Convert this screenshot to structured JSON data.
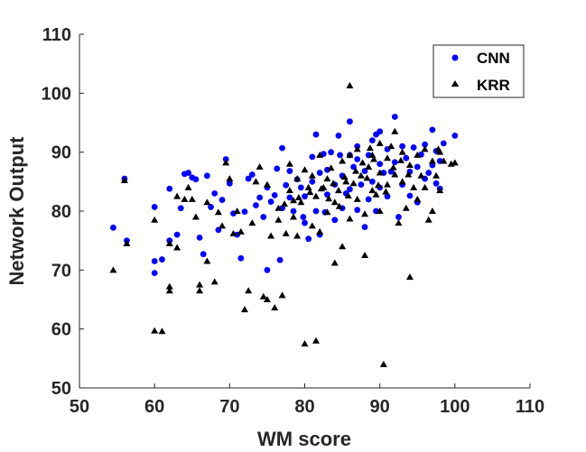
{
  "chart_data": {
    "type": "scatter",
    "title": "",
    "xlabel": "WM score",
    "ylabel": "Network Output",
    "xlim": [
      50,
      110
    ],
    "ylim": [
      50,
      110
    ],
    "xticks": [
      "50",
      "60",
      "70",
      "80",
      "90",
      "100",
      "110"
    ],
    "yticks": [
      "50",
      "60",
      "70",
      "80",
      "90",
      "100",
      "110"
    ],
    "grid": false,
    "legend_position": "top-right",
    "series": [
      {
        "name": "CNN",
        "marker": "circle",
        "color": "#0000ff",
        "points": [
          [
            54.5,
            77.2
          ],
          [
            56,
            85.5
          ],
          [
            56.3,
            75
          ],
          [
            60,
            80.7
          ],
          [
            60,
            71.5
          ],
          [
            60,
            69.5
          ],
          [
            61,
            71.8
          ],
          [
            62,
            75
          ],
          [
            62,
            83.8
          ],
          [
            63,
            76
          ],
          [
            63.5,
            80.5
          ],
          [
            64,
            86.3
          ],
          [
            64.5,
            86.5
          ],
          [
            65,
            85.7
          ],
          [
            65.5,
            85.4
          ],
          [
            66,
            75.5
          ],
          [
            66.5,
            72.7
          ],
          [
            67,
            86
          ],
          [
            67.5,
            80.7
          ],
          [
            68,
            83
          ],
          [
            68.5,
            76.8
          ],
          [
            69,
            81.9
          ],
          [
            69.5,
            88.8
          ],
          [
            70,
            84.7
          ],
          [
            70.5,
            79.6
          ],
          [
            71,
            76
          ],
          [
            71.5,
            72
          ],
          [
            72,
            79.9
          ],
          [
            72.5,
            85.5
          ],
          [
            73,
            86.2
          ],
          [
            73.5,
            81
          ],
          [
            74,
            82.3
          ],
          [
            74.5,
            79
          ],
          [
            75,
            70
          ],
          [
            75,
            84
          ],
          [
            75.5,
            81.6
          ],
          [
            76,
            82.7
          ],
          [
            76.3,
            87.2
          ],
          [
            76.7,
            71.7
          ],
          [
            77,
            90.7
          ],
          [
            77,
            80.5
          ],
          [
            77.5,
            84.4
          ],
          [
            78,
            82.3
          ],
          [
            78,
            86.8
          ],
          [
            78.5,
            80
          ],
          [
            79,
            85.4
          ],
          [
            79.5,
            84
          ],
          [
            80,
            82.5
          ],
          [
            80,
            78
          ],
          [
            80.5,
            75.3
          ],
          [
            81,
            89.2
          ],
          [
            81,
            85
          ],
          [
            81.5,
            93
          ],
          [
            81.5,
            80
          ],
          [
            82,
            86.5
          ],
          [
            82,
            76
          ],
          [
            82.5,
            89.7
          ],
          [
            83,
            82.8
          ],
          [
            83,
            87
          ],
          [
            83.5,
            90
          ],
          [
            84,
            84.5
          ],
          [
            84,
            78.5
          ],
          [
            84.5,
            92.8
          ],
          [
            85,
            86
          ],
          [
            85,
            80.5
          ],
          [
            85.5,
            83
          ],
          [
            86,
            95.2
          ],
          [
            86,
            89.5
          ],
          [
            86,
            83.7
          ],
          [
            86.5,
            87.5
          ],
          [
            87,
            80.2
          ],
          [
            87,
            91
          ],
          [
            87.5,
            84.5
          ],
          [
            88,
            86.8
          ],
          [
            88,
            77.3
          ],
          [
            88.5,
            89.5
          ],
          [
            88.5,
            82
          ],
          [
            89,
            92
          ],
          [
            89,
            85
          ],
          [
            89.5,
            80
          ],
          [
            90,
            93.5
          ],
          [
            90,
            88
          ],
          [
            90,
            84
          ],
          [
            90.5,
            86.5
          ],
          [
            91,
            90.5
          ],
          [
            91,
            82.5
          ],
          [
            91.5,
            86.7
          ],
          [
            92,
            96
          ],
          [
            92,
            88.3
          ],
          [
            92.5,
            79
          ],
          [
            93,
            91
          ],
          [
            93,
            84.5
          ],
          [
            93.5,
            89
          ],
          [
            94,
            86.7
          ],
          [
            94,
            82.6
          ],
          [
            94.5,
            90.8
          ],
          [
            95,
            87.5
          ],
          [
            95,
            81.5
          ],
          [
            95.5,
            89.6
          ],
          [
            96,
            91.3
          ],
          [
            96,
            85.5
          ],
          [
            96.5,
            86.5
          ],
          [
            97,
            93.8
          ],
          [
            97,
            87.8
          ],
          [
            97.5,
            90.2
          ],
          [
            97.5,
            84.7
          ],
          [
            98,
            88.5
          ],
          [
            98,
            83.8
          ],
          [
            98.5,
            91.5
          ],
          [
            100,
            92.8
          ],
          [
            89.5,
            93
          ],
          [
            87,
            88.8
          ],
          [
            84.7,
            89.5
          ],
          [
            82.7,
            79.8
          ],
          [
            79.8,
            79
          ]
        ]
      },
      {
        "name": "KRR",
        "marker": "triangle",
        "color": "#000000",
        "points": [
          [
            54.5,
            70
          ],
          [
            56,
            85.2
          ],
          [
            56.3,
            74.5
          ],
          [
            60,
            59.7
          ],
          [
            61,
            59.6
          ],
          [
            60,
            78.5
          ],
          [
            62,
            66.5
          ],
          [
            62,
            67.2
          ],
          [
            62,
            74.5
          ],
          [
            63,
            82.5
          ],
          [
            63,
            73.8
          ],
          [
            64,
            82
          ],
          [
            64.5,
            84
          ],
          [
            65,
            82
          ],
          [
            65.5,
            79
          ],
          [
            66,
            67.5
          ],
          [
            66,
            66.5
          ],
          [
            67,
            71.5
          ],
          [
            67,
            81.5
          ],
          [
            68,
            68
          ],
          [
            68.5,
            79.8
          ],
          [
            69,
            77.5
          ],
          [
            69.5,
            88.2
          ],
          [
            70,
            85.5
          ],
          [
            70.5,
            76.2
          ],
          [
            71,
            80
          ],
          [
            71.5,
            76.5
          ],
          [
            72,
            63.3
          ],
          [
            72.5,
            66.5
          ],
          [
            73,
            78
          ],
          [
            73.5,
            85
          ],
          [
            74,
            87.5
          ],
          [
            74.5,
            65.5
          ],
          [
            75,
            65
          ],
          [
            75,
            84.5
          ],
          [
            75.5,
            75.8
          ],
          [
            76,
            63.6
          ],
          [
            76.5,
            78.5
          ],
          [
            77,
            65.7
          ],
          [
            77.5,
            76.2
          ],
          [
            78,
            83.5
          ],
          [
            78,
            88
          ],
          [
            78.5,
            79
          ],
          [
            79,
            85.5
          ],
          [
            79,
            75.8
          ],
          [
            79.5,
            81.5
          ],
          [
            80,
            57.5
          ],
          [
            80,
            87
          ],
          [
            80.5,
            84
          ],
          [
            81,
            86
          ],
          [
            81,
            77.5
          ],
          [
            81.5,
            58
          ],
          [
            81.5,
            82.5
          ],
          [
            82,
            89.5
          ],
          [
            82,
            76.5
          ],
          [
            82.5,
            84
          ],
          [
            83,
            85.5
          ],
          [
            83,
            79.8
          ],
          [
            83.5,
            87.3
          ],
          [
            84,
            81.5
          ],
          [
            84,
            71.2
          ],
          [
            84.5,
            83.5
          ],
          [
            85,
            88.5
          ],
          [
            85,
            74
          ],
          [
            85.5,
            85
          ],
          [
            86,
            101.3
          ],
          [
            86,
            89.5
          ],
          [
            86,
            78.7
          ],
          [
            86.5,
            84.7
          ],
          [
            87,
            90.5
          ],
          [
            87,
            82
          ],
          [
            87.5,
            86
          ],
          [
            88,
            79.5
          ],
          [
            88,
            72.5
          ],
          [
            88.5,
            87.5
          ],
          [
            89,
            83.5
          ],
          [
            89,
            89.5
          ],
          [
            89.5,
            82.8
          ],
          [
            90,
            91.5
          ],
          [
            90,
            86.5
          ],
          [
            90,
            80
          ],
          [
            90.5,
            54
          ],
          [
            91,
            89
          ],
          [
            91,
            84.5
          ],
          [
            91.5,
            91
          ],
          [
            92,
            93.5
          ],
          [
            92,
            86.2
          ],
          [
            92.5,
            78
          ],
          [
            93,
            90
          ],
          [
            93,
            85
          ],
          [
            93.5,
            80.5
          ],
          [
            94,
            68.8
          ],
          [
            94,
            87.8
          ],
          [
            94.5,
            84
          ],
          [
            95,
            89.5
          ],
          [
            95,
            82
          ],
          [
            95.5,
            86
          ],
          [
            96,
            90.5
          ],
          [
            96,
            84
          ],
          [
            96.5,
            78.5
          ],
          [
            97,
            88.5
          ],
          [
            97,
            80
          ],
          [
            97.5,
            86
          ],
          [
            98,
            90
          ],
          [
            98,
            83.5
          ],
          [
            98.5,
            88.5
          ],
          [
            99.5,
            88
          ],
          [
            100,
            88.2
          ],
          [
            97.8,
            90.5
          ],
          [
            88.7,
            90.7
          ],
          [
            89.2,
            88.8
          ],
          [
            87.7,
            88.2
          ],
          [
            85.3,
            85.8
          ],
          [
            83.8,
            84.7
          ],
          [
            82.2,
            83.8
          ],
          [
            80.7,
            83.2
          ],
          [
            79.2,
            82.3
          ],
          [
            78.5,
            81.8
          ],
          [
            77.3,
            81.2
          ],
          [
            76.5,
            80.5
          ],
          [
            90.8,
            83.3
          ],
          [
            91.8,
            87.4
          ],
          [
            92.8,
            88.6
          ],
          [
            93.8,
            86.2
          ],
          [
            89.8,
            84.4
          ],
          [
            88.3,
            85.6
          ],
          [
            86.8,
            86.8
          ],
          [
            85.8,
            82.6
          ],
          [
            84.6,
            80.8
          ],
          [
            83.2,
            82.1
          ]
        ]
      }
    ]
  }
}
